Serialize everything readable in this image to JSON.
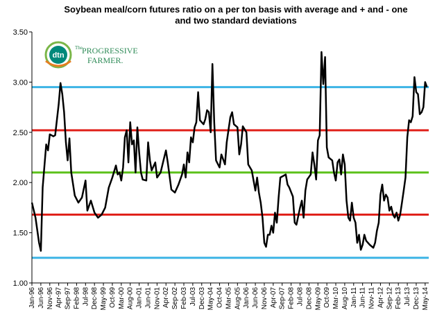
{
  "chart_data": {
    "type": "line",
    "title": "Soybean meal/corn futures ratio on a per ton basis with average and + and - one",
    "subtitle": "and two standard deviations",
    "xlabel": "",
    "ylabel": "",
    "ylim": [
      1.0,
      3.5
    ],
    "yticks": [
      "1.00",
      "1.50",
      "2.00",
      "2.50",
      "3.00",
      "3.50"
    ],
    "grid": false,
    "legend": "none",
    "x_tick_labels": [
      "Jan-96",
      "Jun-96",
      "Nov-96",
      "Apr-97",
      "Sep-97",
      "Feb-98",
      "Jul-98",
      "Dec-98",
      "May-99",
      "Oct-99",
      "Mar-00",
      "Aug-00",
      "Jan-01",
      "Jun-01",
      "Nov-01",
      "Apr-02",
      "Sep-02",
      "Feb-03",
      "Jul-03",
      "Dec-03",
      "May-04",
      "Oct-04",
      "Mar-05",
      "Aug-05",
      "Jan-06",
      "Jun-06",
      "Nov-06",
      "Apr-07",
      "Sep-07",
      "Feb-08",
      "Jul-08",
      "Dec-08",
      "May-09",
      "Oct-09",
      "Mar-10",
      "Aug-10",
      "Jan-11",
      "Jun-11",
      "Nov-11",
      "Apr-12",
      "Sep-12",
      "Feb-13",
      "Jul-13",
      "Dec-13",
      "May-14"
    ],
    "x_range_months": [
      "Jan-96",
      "Jul-14"
    ],
    "reference_lines": [
      {
        "value": 2.95,
        "color": "#3cb4e5"
      },
      {
        "value": 2.52,
        "color": "#e0211b"
      },
      {
        "value": 2.1,
        "color": "#5cc11a"
      },
      {
        "value": 1.68,
        "color": "#e0211b"
      },
      {
        "value": 1.25,
        "color": "#3cb4e5"
      }
    ],
    "series": [
      {
        "color": "#000000",
        "points": [
          [
            "1996-01",
            1.8
          ],
          [
            "1996-03",
            1.65
          ],
          [
            "1996-05",
            1.4
          ],
          [
            "1996-06",
            1.32
          ],
          [
            "1996-07",
            1.95
          ],
          [
            "1996-09",
            2.38
          ],
          [
            "1996-10",
            2.32
          ],
          [
            "1996-11",
            2.48
          ],
          [
            "1997-01",
            2.46
          ],
          [
            "1997-02",
            2.47
          ],
          [
            "1997-04",
            2.78
          ],
          [
            "1997-05",
            2.99
          ],
          [
            "1997-06",
            2.88
          ],
          [
            "1997-07",
            2.7
          ],
          [
            "1997-08",
            2.4
          ],
          [
            "1997-09",
            2.22
          ],
          [
            "1997-10",
            2.44
          ],
          [
            "1997-11",
            2.1
          ],
          [
            "1998-01",
            1.87
          ],
          [
            "1998-03",
            1.8
          ],
          [
            "1998-05",
            1.85
          ],
          [
            "1998-07",
            2.02
          ],
          [
            "1998-08",
            1.72
          ],
          [
            "1998-10",
            1.82
          ],
          [
            "1998-12",
            1.7
          ],
          [
            "1999-02",
            1.65
          ],
          [
            "1999-04",
            1.68
          ],
          [
            "1999-06",
            1.75
          ],
          [
            "1999-08",
            1.95
          ],
          [
            "1999-10",
            2.05
          ],
          [
            "1999-12",
            2.17
          ],
          [
            "2000-01",
            2.08
          ],
          [
            "2000-02",
            2.1
          ],
          [
            "2000-03",
            2.02
          ],
          [
            "2000-04",
            2.15
          ],
          [
            "2000-05",
            2.45
          ],
          [
            "2000-06",
            2.52
          ],
          [
            "2000-07",
            2.2
          ],
          [
            "2000-08",
            2.6
          ],
          [
            "2000-09",
            2.38
          ],
          [
            "2000-10",
            2.42
          ],
          [
            "2000-11",
            2.1
          ],
          [
            "2000-12",
            2.55
          ],
          [
            "2001-01",
            2.3
          ],
          [
            "2001-02",
            2.1
          ],
          [
            "2001-03",
            2.03
          ],
          [
            "2001-05",
            2.02
          ],
          [
            "2001-06",
            2.4
          ],
          [
            "2001-07",
            2.22
          ],
          [
            "2001-08",
            2.12
          ],
          [
            "2001-10",
            2.2
          ],
          [
            "2001-11",
            2.05
          ],
          [
            "2002-01",
            2.1
          ],
          [
            "2002-03",
            2.25
          ],
          [
            "2002-04",
            2.32
          ],
          [
            "2002-05",
            2.2
          ],
          [
            "2002-07",
            1.93
          ],
          [
            "2002-09",
            1.9
          ],
          [
            "2002-11",
            1.98
          ],
          [
            "2003-01",
            2.08
          ],
          [
            "2003-02",
            2.18
          ],
          [
            "2003-03",
            2.05
          ],
          [
            "2003-04",
            2.3
          ],
          [
            "2003-05",
            2.2
          ],
          [
            "2003-06",
            2.45
          ],
          [
            "2003-07",
            2.4
          ],
          [
            "2003-08",
            2.55
          ],
          [
            "2003-09",
            2.6
          ],
          [
            "2003-10",
            2.9
          ],
          [
            "2003-11",
            2.62
          ],
          [
            "2004-01",
            2.58
          ],
          [
            "2004-02",
            2.63
          ],
          [
            "2004-03",
            2.72
          ],
          [
            "2004-04",
            2.7
          ],
          [
            "2004-05",
            2.5
          ],
          [
            "2004-06",
            3.18
          ],
          [
            "2004-07",
            2.6
          ],
          [
            "2004-08",
            2.22
          ],
          [
            "2004-10",
            2.15
          ],
          [
            "2004-11",
            2.28
          ],
          [
            "2005-01",
            2.18
          ],
          [
            "2005-02",
            2.4
          ],
          [
            "2005-04",
            2.65
          ],
          [
            "2005-05",
            2.7
          ],
          [
            "2005-06",
            2.58
          ],
          [
            "2005-08",
            2.55
          ],
          [
            "2005-09",
            2.28
          ],
          [
            "2005-10",
            2.38
          ],
          [
            "2005-11",
            2.56
          ],
          [
            "2006-01",
            2.5
          ],
          [
            "2006-02",
            2.18
          ],
          [
            "2006-04",
            2.12
          ],
          [
            "2006-05",
            2.02
          ],
          [
            "2006-06",
            1.92
          ],
          [
            "2006-07",
            2.05
          ],
          [
            "2006-08",
            1.9
          ],
          [
            "2006-09",
            1.8
          ],
          [
            "2006-10",
            1.65
          ],
          [
            "2006-11",
            1.4
          ],
          [
            "2006-12",
            1.36
          ],
          [
            "2007-01",
            1.48
          ],
          [
            "2007-02",
            1.48
          ],
          [
            "2007-03",
            1.57
          ],
          [
            "2007-04",
            1.5
          ],
          [
            "2007-05",
            1.7
          ],
          [
            "2007-06",
            1.6
          ],
          [
            "2007-07",
            1.85
          ],
          [
            "2007-08",
            2.05
          ],
          [
            "2007-10",
            2.07
          ],
          [
            "2007-11",
            2.08
          ],
          [
            "2007-12",
            1.98
          ],
          [
            "2008-01",
            1.95
          ],
          [
            "2008-03",
            1.86
          ],
          [
            "2008-04",
            1.6
          ],
          [
            "2008-05",
            1.58
          ],
          [
            "2008-07",
            1.75
          ],
          [
            "2008-08",
            1.82
          ],
          [
            "2008-09",
            1.65
          ],
          [
            "2008-10",
            1.92
          ],
          [
            "2008-11",
            2.03
          ],
          [
            "2009-01",
            2.08
          ],
          [
            "2009-02",
            2.3
          ],
          [
            "2009-03",
            2.18
          ],
          [
            "2009-04",
            2.03
          ],
          [
            "2009-05",
            2.42
          ],
          [
            "2009-06",
            2.47
          ],
          [
            "2009-07",
            3.3
          ],
          [
            "2009-08",
            2.98
          ],
          [
            "2009-09",
            3.25
          ],
          [
            "2009-10",
            2.35
          ],
          [
            "2009-11",
            2.25
          ],
          [
            "2010-01",
            2.22
          ],
          [
            "2010-02",
            2.1
          ],
          [
            "2010-03",
            2.02
          ],
          [
            "2010-04",
            2.2
          ],
          [
            "2010-05",
            2.23
          ],
          [
            "2010-06",
            2.08
          ],
          [
            "2010-07",
            2.28
          ],
          [
            "2010-08",
            2.18
          ],
          [
            "2010-09",
            1.82
          ],
          [
            "2010-10",
            1.65
          ],
          [
            "2010-11",
            1.62
          ],
          [
            "2010-12",
            1.8
          ],
          [
            "2011-01",
            1.65
          ],
          [
            "2011-02",
            1.6
          ],
          [
            "2011-03",
            1.4
          ],
          [
            "2011-04",
            1.48
          ],
          [
            "2011-05",
            1.33
          ],
          [
            "2011-06",
            1.38
          ],
          [
            "2011-07",
            1.48
          ],
          [
            "2011-08",
            1.42
          ],
          [
            "2011-10",
            1.38
          ],
          [
            "2011-12",
            1.35
          ],
          [
            "2012-01",
            1.4
          ],
          [
            "2012-02",
            1.52
          ],
          [
            "2012-03",
            1.6
          ],
          [
            "2012-04",
            1.88
          ],
          [
            "2012-05",
            1.98
          ],
          [
            "2012-06",
            1.82
          ],
          [
            "2012-07",
            1.88
          ],
          [
            "2012-08",
            1.85
          ],
          [
            "2012-09",
            1.72
          ],
          [
            "2012-10",
            1.76
          ],
          [
            "2012-11",
            1.68
          ],
          [
            "2012-12",
            1.65
          ],
          [
            "2013-01",
            1.7
          ],
          [
            "2013-02",
            1.62
          ],
          [
            "2013-03",
            1.68
          ],
          [
            "2013-04",
            1.8
          ],
          [
            "2013-05",
            1.92
          ],
          [
            "2013-06",
            2.05
          ],
          [
            "2013-07",
            2.45
          ],
          [
            "2013-08",
            2.62
          ],
          [
            "2013-09",
            2.6
          ],
          [
            "2013-10",
            2.66
          ],
          [
            "2013-11",
            3.05
          ],
          [
            "2013-12",
            2.9
          ],
          [
            "2014-01",
            2.88
          ],
          [
            "2014-02",
            2.68
          ],
          [
            "2014-03",
            2.7
          ],
          [
            "2014-04",
            2.75
          ],
          [
            "2014-05",
            3.0
          ],
          [
            "2014-06",
            2.95
          ]
        ]
      }
    ]
  },
  "logo": {
    "mark_text": "dtn",
    "brand_line1": "PROGRESSIVE",
    "brand_prefix": "The",
    "brand_line2": "FARMER."
  }
}
